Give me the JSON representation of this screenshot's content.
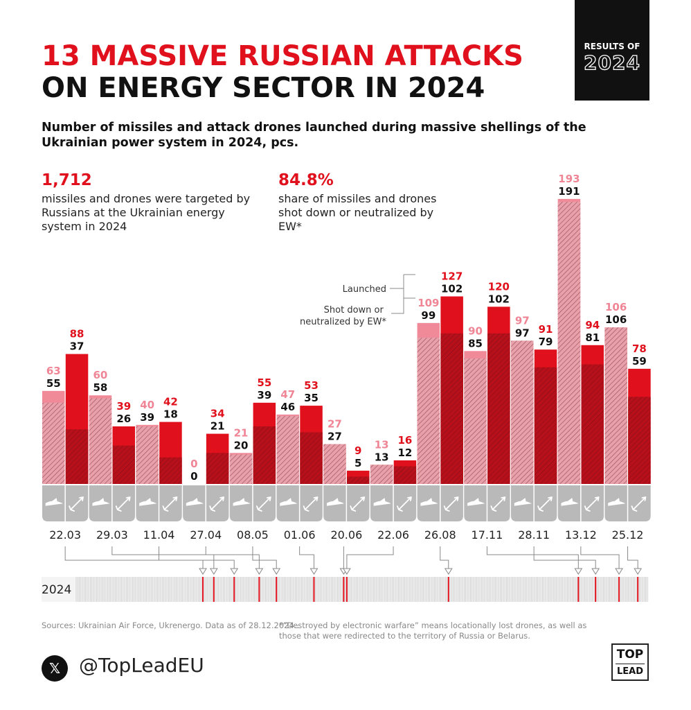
{
  "title": {
    "line1": "13 MASSIVE RUSSIAN ATTACKS",
    "line2": "ON ENERGY SECTOR IN 2024"
  },
  "badge": {
    "line1": "RESULTS OF",
    "line2": "2024"
  },
  "subtitle": "Number of missiles and attack drones launched during massive shellings of the Ukrainian power system in 2024, pcs.",
  "stats": [
    {
      "value": "1,712",
      "text": "missiles and drones were targeted by Russians at the Ukrainian energy system in 2024"
    },
    {
      "value": "84.8%",
      "text": "share of missiles and drones shot down or neutralized by EW*"
    }
  ],
  "legend": {
    "launched": "Launched",
    "shot_down": "Shot down or neutralized by EW*"
  },
  "chart_data": {
    "type": "bar",
    "title": "Number of missiles and attack drones launched during massive shellings of the Ukrainian power system in 2024, pcs.",
    "series_names": [
      "Launched",
      "Shot down or neutralized by EW*"
    ],
    "weapon_types": [
      "drones",
      "missiles"
    ],
    "categories": [
      "22.03",
      "29.03",
      "11.04",
      "27.04",
      "08.05",
      "01.06",
      "20.06",
      "22.06",
      "26.08",
      "17.11",
      "28.11",
      "13.12",
      "25.12"
    ],
    "values": [
      {
        "date": "22.03",
        "drones": {
          "launched": 63,
          "shot_down": 55
        },
        "missiles": {
          "launched": 88,
          "shot_down": 37
        }
      },
      {
        "date": "29.03",
        "drones": {
          "launched": 60,
          "shot_down": 58
        },
        "missiles": {
          "launched": 39,
          "shot_down": 26
        }
      },
      {
        "date": "11.04",
        "drones": {
          "launched": 40,
          "shot_down": 39
        },
        "missiles": {
          "launched": 42,
          "shot_down": 18
        }
      },
      {
        "date": "27.04",
        "drones": {
          "launched": 0,
          "shot_down": 0
        },
        "missiles": {
          "launched": 34,
          "shot_down": 21
        }
      },
      {
        "date": "08.05",
        "drones": {
          "launched": 21,
          "shot_down": 20
        },
        "missiles": {
          "launched": 55,
          "shot_down": 39
        }
      },
      {
        "date": "01.06",
        "drones": {
          "launched": 47,
          "shot_down": 46
        },
        "missiles": {
          "launched": 53,
          "shot_down": 35
        }
      },
      {
        "date": "20.06",
        "drones": {
          "launched": 27,
          "shot_down": 27
        },
        "missiles": {
          "launched": 9,
          "shot_down": 5
        }
      },
      {
        "date": "22.06",
        "drones": {
          "launched": 13,
          "shot_down": 13
        },
        "missiles": {
          "launched": 16,
          "shot_down": 12
        }
      },
      {
        "date": "26.08",
        "drones": {
          "launched": 109,
          "shot_down": 99
        },
        "missiles": {
          "launched": 127,
          "shot_down": 102
        }
      },
      {
        "date": "17.11",
        "drones": {
          "launched": 90,
          "shot_down": 85
        },
        "missiles": {
          "launched": 120,
          "shot_down": 102
        }
      },
      {
        "date": "28.11",
        "drones": {
          "launched": 97,
          "shot_down": 97
        },
        "missiles": {
          "launched": 91,
          "shot_down": 79
        }
      },
      {
        "date": "13.12",
        "drones": {
          "launched": 193,
          "shot_down": 191
        },
        "missiles": {
          "launched": 94,
          "shot_down": 81
        }
      },
      {
        "date": "25.12",
        "drones": {
          "launched": 106,
          "shot_down": 106
        },
        "missiles": {
          "launched": 78,
          "shot_down": 59
        }
      }
    ],
    "ylim": [
      0,
      200
    ],
    "grid": false,
    "timeline": {
      "label": "2024"
    },
    "colors": {
      "drone_launched": "#f08a98",
      "drone_shot_down": "#e8a0ab",
      "missile_launched": "#e0101c",
      "missile_shot_down": "#b8101b",
      "drone_label": "#ef8595",
      "missile_label": "#e0101c",
      "shot_label": "#111111"
    }
  },
  "footer": {
    "source": "Sources: Ukrainian Air Force, Ukrenergo. Data as of 28.12.2024..",
    "footnote": "*“Destroyed by electronic warfare” means locationally lost drones, as well as those that were redirected to the territory of Russia or Belarus.",
    "x_icon": "x-logo-icon",
    "handle": "@TopLeadEU",
    "logo_top": "TOP",
    "logo_bottom": "LEAD"
  }
}
